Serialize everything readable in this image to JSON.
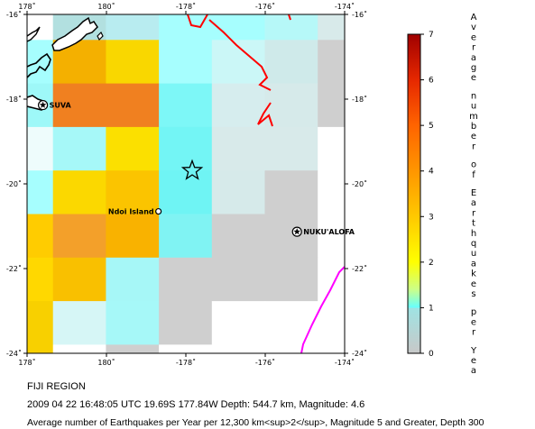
{
  "map": {
    "lon_min": 178,
    "lon_max": -174,
    "lat_min": -24,
    "lat_max": -16,
    "lon_ticks": [
      "178˚",
      "180˚",
      "-178˚",
      "-176˚",
      "-174˚"
    ],
    "lat_ticks": [
      "-16˚",
      "-18˚",
      "-20˚",
      "-22˚",
      "-24˚"
    ],
    "cell_colors": [
      [
        "#ffffff",
        "#b2e0e0",
        "#b8ecf0",
        "#a6fefe",
        "#a6fefe",
        "#b6f8f8",
        "#d8eaea",
        "#cfcfcf",
        "#ffffff"
      ],
      [
        "#a6fefe",
        "#f4b000",
        "#f9d700",
        "#a6fefe",
        "#cbf7f7",
        "#cfeaea",
        "#cfcfcf",
        "#ffffff",
        "#ffffff"
      ],
      [
        "#9ef8f8",
        "#f08020",
        "#f08020",
        "#7df7f7",
        "#d6edee",
        "#d6eaea",
        "#cfcfcf",
        "#ffffff",
        "#ffffff"
      ],
      [
        "#eefcfc",
        "#a6f8f8",
        "#fbe000",
        "#73f5f5",
        "#d8eaea",
        "#d8eaea",
        "#ffffff",
        "#ffffff",
        "#ffffff"
      ],
      [
        "#a6fefe",
        "#fbd800",
        "#fbc400",
        "#6ff4f4",
        "#d6eaea",
        "#cfcfcf",
        "#ffffff",
        "#ffffff",
        "#ffffff"
      ],
      [
        "#ffcc00",
        "#f3a02a",
        "#f9b200",
        "#80f3f3",
        "#cfcfcf",
        "#cfcfcf",
        "#ffffff",
        "#ffffff",
        "#ffffff"
      ],
      [
        "#ffd800",
        "#f9c000",
        "#a6f7f7",
        "#cfcfcf",
        "#cfcfcf",
        "#cfcfcf",
        "#ffffff",
        "#ffffff",
        "#ffffff"
      ],
      [
        "#f8d000",
        "#d6f6f6",
        "#a6f8f8",
        "#cfcfcf",
        "#ffffff",
        "#ffffff",
        "#ffffff",
        "#ffffff",
        "#ffffff"
      ],
      [
        "#f8d000",
        "#ffffff",
        "#cfcfcf",
        "#ffffff",
        "#ffffff",
        "#ffffff",
        "#ffffff",
        "#ffffff",
        "#ffffff"
      ]
    ],
    "places": [
      {
        "name": "SUVA",
        "lon": 178.4,
        "lat": -18.14,
        "marker": "capital"
      },
      {
        "name": "Ndoi Island",
        "lon": -178.69,
        "lat": -20.65,
        "marker": "town"
      },
      {
        "name": "NUKU'ALOFA",
        "lon": -175.2,
        "lat": -21.13,
        "marker": "capital"
      }
    ],
    "epicenter": {
      "lon": -177.84,
      "lat": -19.69
    },
    "plate_boundary_color": "#ff0000",
    "trench_color": "#ff00ff"
  },
  "scale": {
    "title": "Average number of Earthquakes per Year",
    "ticks": [
      "0",
      "1",
      "2",
      "3",
      "4",
      "5",
      "6",
      "7"
    ],
    "colors": [
      "#c8c8c8",
      "#66ffff",
      "#ffff00",
      "#ffc800",
      "#ff9600",
      "#ff6400",
      "#e62800",
      "#a00000"
    ]
  },
  "caption": {
    "region": "FIJI REGION",
    "event": "2009 04 22 16:48:05 UTC 19.69S 177.84W Depth: 544.7 km, Magnitude: 4.6",
    "description": "Average number of Earthquakes per Year per 12,300 km<sup>2</sup>, Magnitude 5 and Greater, Depth 300"
  }
}
